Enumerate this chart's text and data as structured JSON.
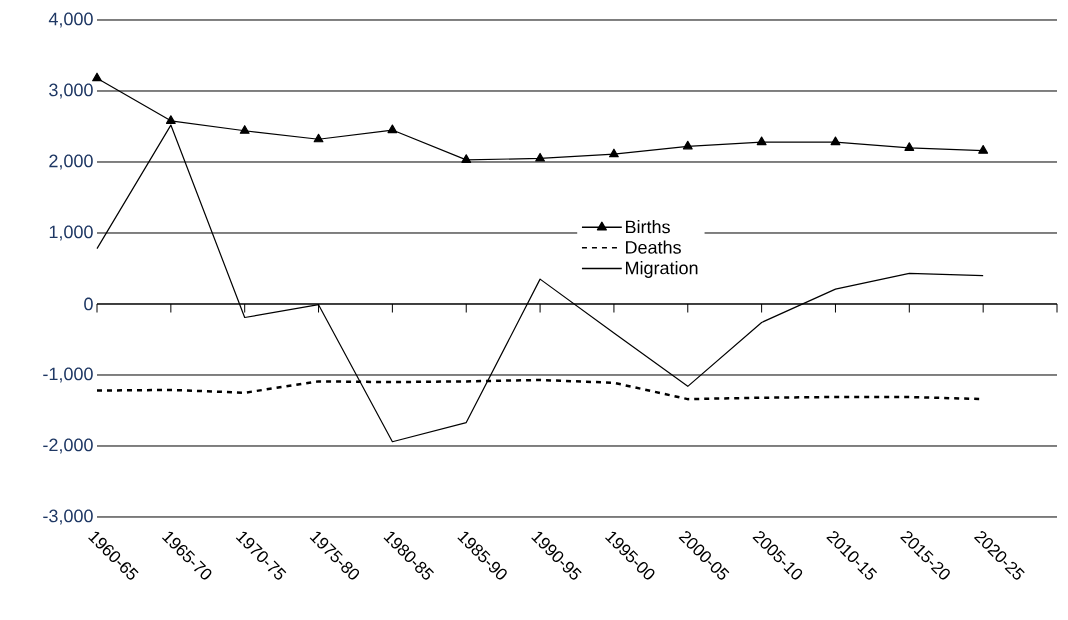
{
  "chart_data": {
    "type": "line",
    "categories": [
      "1960-65",
      "1965-70",
      "1970-75",
      "1975-80",
      "1980-85",
      "1985-90",
      "1990-95",
      "1995-00",
      "2000-05",
      "2005-10",
      "2010-15",
      "2015-20",
      "2020-25"
    ],
    "series": [
      {
        "name": "Births",
        "color": "#000000",
        "marker": "triangle",
        "line_style": "solid",
        "values": [
          3180,
          2580,
          2440,
          2320,
          2450,
          2030,
          2050,
          2110,
          2220,
          2280,
          2280,
          2200,
          2160
        ]
      },
      {
        "name": "Deaths",
        "color": "#000000",
        "marker": "none",
        "line_style": "dashed",
        "values": [
          -1220,
          -1210,
          -1250,
          -1090,
          -1100,
          -1090,
          -1070,
          -1110,
          -1340,
          -1320,
          -1310,
          -1310,
          -1340
        ]
      },
      {
        "name": "Migration",
        "color": "#000000",
        "marker": "none",
        "line_style": "solid",
        "values": [
          780,
          2520,
          -190,
          -10,
          -1940,
          -1670,
          350,
          -410,
          -1160,
          -260,
          210,
          430,
          400
        ]
      }
    ],
    "ylim": [
      -3000,
      4000
    ],
    "yticks": [
      {
        "value": -3000,
        "label": "-3,000"
      },
      {
        "value": -2000,
        "label": "-2,000"
      },
      {
        "value": -1000,
        "label": "-1,000"
      },
      0,
      {
        "value": 1000,
        "label": "1,000"
      },
      {
        "value": 2000,
        "label": "2,000"
      },
      {
        "value": 3000,
        "label": "3,000"
      },
      {
        "value": 4000,
        "label": "4,000"
      }
    ],
    "grid": "y",
    "legend": "center"
  }
}
